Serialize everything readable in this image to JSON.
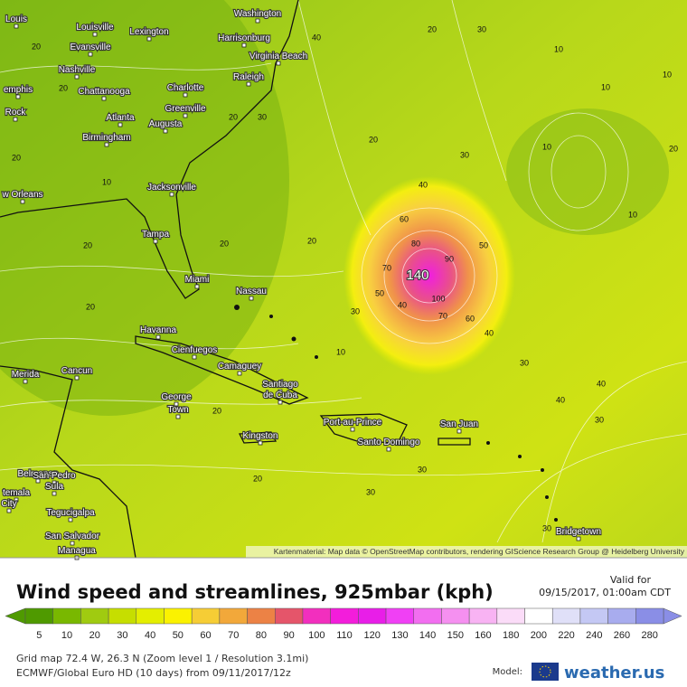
{
  "map": {
    "attribution": "Kartenmaterial: Map data © OpenStreetMap contributors, rendering GIScience Research Group @ Heidelberg University",
    "cities": [
      "Louis",
      "Louisville",
      "Lexington",
      "Evansville",
      "Washington",
      "Harrisonburg",
      "Virginia Beach",
      "Nashville",
      "Raleigh",
      "emphis",
      "Chattanooga",
      "Charlotte",
      "Greenville",
      "Rock",
      "Atlanta",
      "Augusta",
      "Birmingham",
      "Jacksonville",
      "w Orleans",
      "Tampa",
      "Miami",
      "Nassau",
      "Havanna",
      "Cienfuegos",
      "Camaguey",
      "Merida",
      "Cancun",
      "George",
      "Town",
      "Santiago",
      "de Cuba",
      "Port-au-Prince",
      "San Juan",
      "Santo Domingo",
      "Kingston",
      "Belmopan",
      "San Pedro",
      "Sula",
      "temala",
      "City",
      "Tegucigalpa",
      "San Salvador",
      "Managua",
      "Bridgetown"
    ],
    "contour_labels": [
      140,
      60,
      80,
      90,
      70,
      50,
      40,
      100,
      70,
      60,
      50,
      40,
      40,
      20,
      30,
      10,
      10,
      10,
      10,
      10,
      20,
      30,
      20,
      40,
      30,
      20,
      30,
      10,
      20,
      20,
      20,
      10,
      20,
      20,
      20,
      20,
      30,
      30,
      30,
      40,
      40,
      30,
      30,
      20,
      20
    ]
  },
  "header": {
    "title": "Wind speed and streamlines, 925mbar (kph)",
    "valid_label": "Valid for",
    "valid_time": "09/15/2017, 01:00am CDT"
  },
  "legend": {
    "items": [
      {
        "value": 5,
        "color": "#4f9a00"
      },
      {
        "value": 10,
        "color": "#79b800"
      },
      {
        "value": 20,
        "color": "#a0cb10"
      },
      {
        "value": 30,
        "color": "#c6de00"
      },
      {
        "value": 40,
        "color": "#e4ee00"
      },
      {
        "value": 50,
        "color": "#fbf200"
      },
      {
        "value": 60,
        "color": "#f6cd35"
      },
      {
        "value": 70,
        "color": "#f2a83a"
      },
      {
        "value": 80,
        "color": "#ec8245"
      },
      {
        "value": 90,
        "color": "#e5556a"
      },
      {
        "value": 100,
        "color": "#f22fbe"
      },
      {
        "value": 110,
        "color": "#f31ddb"
      },
      {
        "value": 120,
        "color": "#e81ee8"
      },
      {
        "value": 130,
        "color": "#f040f5"
      },
      {
        "value": 140,
        "color": "#f26ef0"
      },
      {
        "value": 150,
        "color": "#f590f0"
      },
      {
        "value": 160,
        "color": "#f8b3f3"
      },
      {
        "value": 180,
        "color": "#fbdcf8"
      },
      {
        "value": 200,
        "color": "#ffffff"
      },
      {
        "value": 220,
        "color": "#e0e0f8"
      },
      {
        "value": 240,
        "color": "#c4c8f4"
      },
      {
        "value": 260,
        "color": "#a8acee"
      },
      {
        "value": 280,
        "color": "#8a8ee6"
      }
    ]
  },
  "footer": {
    "grid_info": "Grid map 72.4 W, 26.3 N (Zoom level 1 / Resolution 3.1mi)",
    "model_run": "ECMWF/Global Euro HD (10 days) from 09/11/2017/12z",
    "model_label": "Model:",
    "brand": "weather.us"
  }
}
